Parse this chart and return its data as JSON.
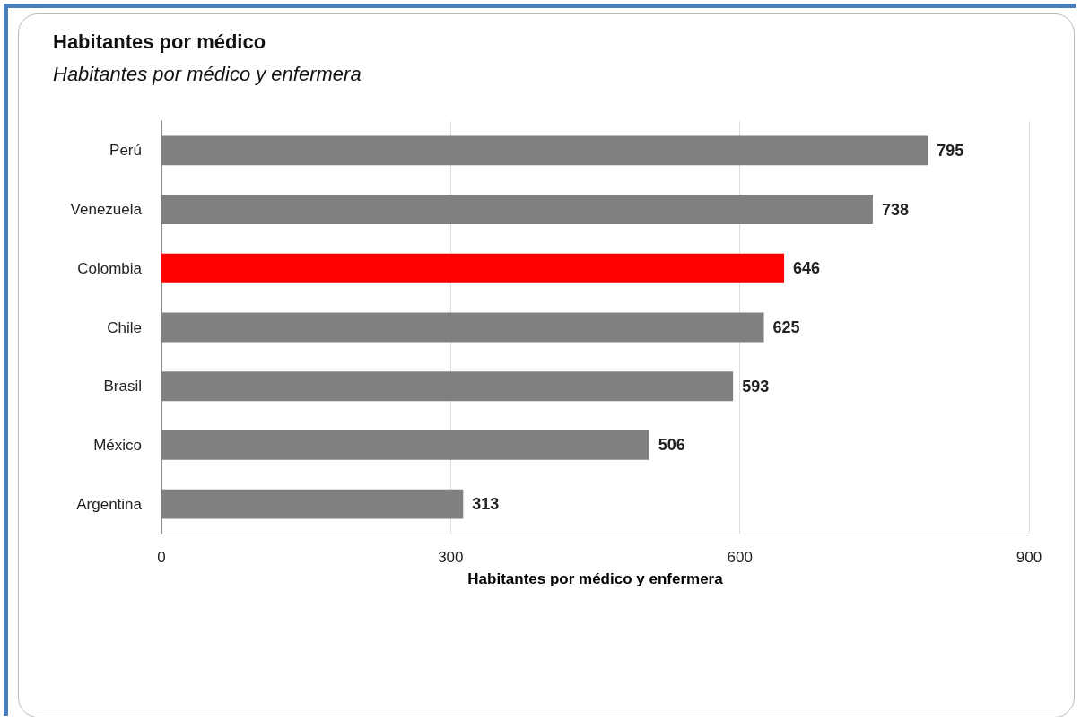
{
  "chart_data": {
    "type": "bar",
    "orientation": "horizontal",
    "title": "Habitantes por médico",
    "subtitle": "Habitantes por médico y enfermera",
    "xlabel": "Habitantes por médico y enfermera",
    "categories": [
      "Perú",
      "Venezuela",
      "Colombia",
      "Chile",
      "Brasil",
      "México",
      "Argentina"
    ],
    "values": [
      795,
      738,
      646,
      625,
      593,
      506,
      313
    ],
    "colors": [
      "#818081",
      "#818081",
      "#ff0000",
      "#818081",
      "#818081",
      "#818081",
      "#818081"
    ],
    "xlim": [
      0,
      900
    ],
    "xticks": [
      0,
      300,
      600,
      900
    ],
    "grid": "x",
    "data_labels": true
  }
}
